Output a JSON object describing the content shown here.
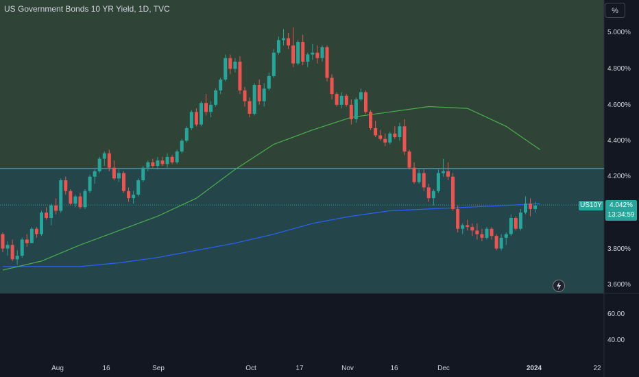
{
  "header": {
    "title": "US Government Bonds 10 YR Yield, 1D, TVC",
    "unit_button": "%"
  },
  "price_badge": {
    "ticker": "US10Y",
    "value": "4.042%",
    "countdown": "13:34:59"
  },
  "colors": {
    "up": "#26a69a",
    "down": "#ef5350",
    "ma_fast": "#4caf50",
    "ma_slow": "#2962ff",
    "zone_upper": "#2f4437",
    "zone_lower": "#24454a",
    "level_line": "#5fb6d0",
    "background": "#131722"
  },
  "chart_data": [
    {
      "type": "candlestick",
      "title": "US Government Bonds 10 YR Yield, 1D, TVC",
      "unit": "%",
      "x_ticks": [
        "Aug",
        "16",
        "Sep",
        "Oct",
        "17",
        "Nov",
        "16",
        "Dec",
        "2024",
        "22"
      ],
      "y_ticks": [
        "5.000%",
        "4.800%",
        "4.600%",
        "4.400%",
        "4.200%",
        "3.800%",
        "3.600%"
      ],
      "ylim": [
        3.55,
        5.15
      ],
      "last_value": 4.042,
      "horizontal_level": 4.245,
      "ohlc": [
        [
          3.88,
          3.89,
          3.78,
          3.8
        ],
        [
          3.8,
          3.84,
          3.76,
          3.82
        ],
        [
          3.82,
          3.85,
          3.73,
          3.74
        ],
        [
          3.74,
          3.79,
          3.71,
          3.76
        ],
        [
          3.76,
          3.86,
          3.75,
          3.85
        ],
        [
          3.85,
          3.88,
          3.81,
          3.83
        ],
        [
          3.83,
          3.92,
          3.83,
          3.91
        ],
        [
          3.91,
          3.92,
          3.86,
          3.88
        ],
        [
          3.88,
          4.01,
          3.87,
          4.0
        ],
        [
          4.0,
          4.03,
          3.96,
          3.97
        ],
        [
          3.97,
          4.05,
          3.93,
          4.04
        ],
        [
          4.04,
          4.08,
          3.99,
          4.01
        ],
        [
          4.01,
          4.19,
          4.0,
          4.18
        ],
        [
          4.18,
          4.2,
          4.1,
          4.12
        ],
        [
          4.12,
          4.13,
          4.04,
          4.05
        ],
        [
          4.05,
          4.1,
          4.03,
          4.09
        ],
        [
          4.09,
          4.11,
          4.02,
          4.03
        ],
        [
          4.03,
          4.13,
          4.02,
          4.12
        ],
        [
          4.12,
          4.21,
          4.11,
          4.2
        ],
        [
          4.2,
          4.24,
          4.16,
          4.23
        ],
        [
          4.23,
          4.31,
          4.22,
          4.3
        ],
        [
          4.3,
          4.34,
          4.26,
          4.33
        ],
        [
          4.33,
          4.35,
          4.23,
          4.25
        ],
        [
          4.25,
          4.29,
          4.18,
          4.19
        ],
        [
          4.19,
          4.24,
          4.17,
          4.22
        ],
        [
          4.22,
          4.23,
          4.11,
          4.12
        ],
        [
          4.12,
          4.14,
          4.06,
          4.08
        ],
        [
          4.08,
          4.12,
          4.05,
          4.1
        ],
        [
          4.1,
          4.19,
          4.09,
          4.18
        ],
        [
          4.18,
          4.26,
          4.17,
          4.25
        ],
        [
          4.25,
          4.29,
          4.23,
          4.28
        ],
        [
          4.28,
          4.3,
          4.25,
          4.26
        ],
        [
          4.26,
          4.31,
          4.24,
          4.29
        ],
        [
          4.29,
          4.31,
          4.26,
          4.27
        ],
        [
          4.27,
          4.33,
          4.25,
          4.31
        ],
        [
          4.31,
          4.32,
          4.27,
          4.28
        ],
        [
          4.28,
          4.35,
          4.27,
          4.34
        ],
        [
          4.34,
          4.41,
          4.33,
          4.4
        ],
        [
          4.4,
          4.48,
          4.39,
          4.47
        ],
        [
          4.47,
          4.57,
          4.46,
          4.56
        ],
        [
          4.56,
          4.58,
          4.48,
          4.49
        ],
        [
          4.49,
          4.62,
          4.48,
          4.61
        ],
        [
          4.61,
          4.66,
          4.54,
          4.56
        ],
        [
          4.56,
          4.62,
          4.53,
          4.6
        ],
        [
          4.6,
          4.69,
          4.59,
          4.68
        ],
        [
          4.68,
          4.75,
          4.66,
          4.74
        ],
        [
          4.74,
          4.88,
          4.73,
          4.86
        ],
        [
          4.86,
          4.88,
          4.77,
          4.8
        ],
        [
          4.8,
          4.86,
          4.78,
          4.84
        ],
        [
          4.84,
          4.87,
          4.66,
          4.68
        ],
        [
          4.68,
          4.7,
          4.59,
          4.62
        ],
        [
          4.62,
          4.64,
          4.53,
          4.55
        ],
        [
          4.55,
          4.72,
          4.54,
          4.71
        ],
        [
          4.71,
          4.74,
          4.6,
          4.62
        ],
        [
          4.62,
          4.72,
          4.59,
          4.69
        ],
        [
          4.69,
          4.78,
          4.68,
          4.76
        ],
        [
          4.76,
          4.91,
          4.75,
          4.89
        ],
        [
          4.89,
          4.98,
          4.88,
          4.96
        ],
        [
          4.96,
          5.02,
          4.93,
          4.97
        ],
        [
          4.97,
          5.0,
          4.91,
          4.93
        ],
        [
          4.93,
          5.03,
          4.81,
          4.83
        ],
        [
          4.83,
          4.96,
          4.82,
          4.95
        ],
        [
          4.95,
          4.99,
          4.82,
          4.84
        ],
        [
          4.84,
          4.89,
          4.81,
          4.88
        ],
        [
          4.88,
          4.94,
          4.85,
          4.89
        ],
        [
          4.89,
          4.93,
          4.83,
          4.86
        ],
        [
          4.86,
          4.93,
          4.84,
          4.92
        ],
        [
          4.92,
          4.93,
          4.73,
          4.75
        ],
        [
          4.75,
          4.77,
          4.63,
          4.66
        ],
        [
          4.66,
          4.67,
          4.59,
          4.6
        ],
        [
          4.6,
          4.67,
          4.58,
          4.65
        ],
        [
          4.65,
          4.66,
          4.59,
          4.6
        ],
        [
          4.6,
          4.63,
          4.49,
          4.52
        ],
        [
          4.52,
          4.64,
          4.5,
          4.63
        ],
        [
          4.63,
          4.69,
          4.62,
          4.67
        ],
        [
          4.67,
          4.68,
          4.55,
          4.56
        ],
        [
          4.56,
          4.57,
          4.46,
          4.47
        ],
        [
          4.47,
          4.51,
          4.42,
          4.43
        ],
        [
          4.43,
          4.46,
          4.4,
          4.41
        ],
        [
          4.41,
          4.44,
          4.37,
          4.39
        ],
        [
          4.39,
          4.45,
          4.38,
          4.44
        ],
        [
          4.44,
          4.48,
          4.41,
          4.42
        ],
        [
          4.42,
          4.5,
          4.4,
          4.48
        ],
        [
          4.48,
          4.52,
          4.32,
          4.34
        ],
        [
          4.34,
          4.35,
          4.24,
          4.25
        ],
        [
          4.25,
          4.28,
          4.16,
          4.17
        ],
        [
          4.17,
          4.24,
          4.16,
          4.22
        ],
        [
          4.22,
          4.24,
          4.12,
          4.14
        ],
        [
          4.14,
          4.16,
          4.06,
          4.08
        ],
        [
          4.08,
          4.13,
          4.04,
          4.12
        ],
        [
          4.12,
          4.24,
          4.11,
          4.22
        ],
        [
          4.22,
          4.3,
          4.2,
          4.23
        ],
        [
          4.23,
          4.28,
          4.18,
          4.2
        ],
        [
          4.2,
          4.22,
          4.01,
          4.02
        ],
        [
          4.02,
          4.04,
          3.89,
          3.91
        ],
        [
          3.91,
          3.94,
          3.88,
          3.93
        ],
        [
          3.93,
          3.96,
          3.9,
          3.92
        ],
        [
          3.92,
          3.94,
          3.87,
          3.9
        ],
        [
          3.9,
          3.94,
          3.85,
          3.88
        ],
        [
          3.88,
          3.91,
          3.84,
          3.86
        ],
        [
          3.86,
          3.92,
          3.85,
          3.91
        ],
        [
          3.91,
          3.92,
          3.85,
          3.87
        ],
        [
          3.87,
          3.88,
          3.79,
          3.8
        ],
        [
          3.8,
          3.88,
          3.79,
          3.86
        ],
        [
          3.86,
          3.89,
          3.82,
          3.88
        ],
        [
          3.88,
          3.99,
          3.87,
          3.97
        ],
        [
          3.97,
          3.98,
          3.9,
          3.91
        ],
        [
          3.91,
          4.02,
          3.9,
          4.0
        ],
        [
          4.0,
          4.09,
          3.99,
          4.05
        ],
        [
          4.05,
          4.08,
          3.98,
          4.02
        ],
        [
          4.02,
          4.06,
          4.0,
          4.04
        ]
      ],
      "ma_fast": [
        [
          0,
          3.68
        ],
        [
          8,
          3.73
        ],
        [
          16,
          3.82
        ],
        [
          24,
          3.9
        ],
        [
          32,
          3.98
        ],
        [
          40,
          4.08
        ],
        [
          48,
          4.24
        ],
        [
          56,
          4.38
        ],
        [
          64,
          4.46
        ],
        [
          72,
          4.53
        ],
        [
          80,
          4.56
        ],
        [
          88,
          4.59
        ],
        [
          96,
          4.58
        ],
        [
          104,
          4.48
        ],
        [
          111,
          4.35
        ]
      ],
      "ma_slow": [
        [
          0,
          3.7
        ],
        [
          8,
          3.7
        ],
        [
          16,
          3.7
        ],
        [
          24,
          3.72
        ],
        [
          32,
          3.75
        ],
        [
          40,
          3.79
        ],
        [
          48,
          3.83
        ],
        [
          56,
          3.88
        ],
        [
          64,
          3.94
        ],
        [
          72,
          3.98
        ],
        [
          80,
          4.01
        ],
        [
          88,
          4.02
        ],
        [
          96,
          4.03
        ],
        [
          104,
          4.04
        ],
        [
          111,
          4.05
        ]
      ]
    },
    {
      "type": "line",
      "title": "",
      "y_ticks": [
        "60.00",
        "40.00"
      ],
      "ylim": [
        25,
        75
      ]
    }
  ]
}
